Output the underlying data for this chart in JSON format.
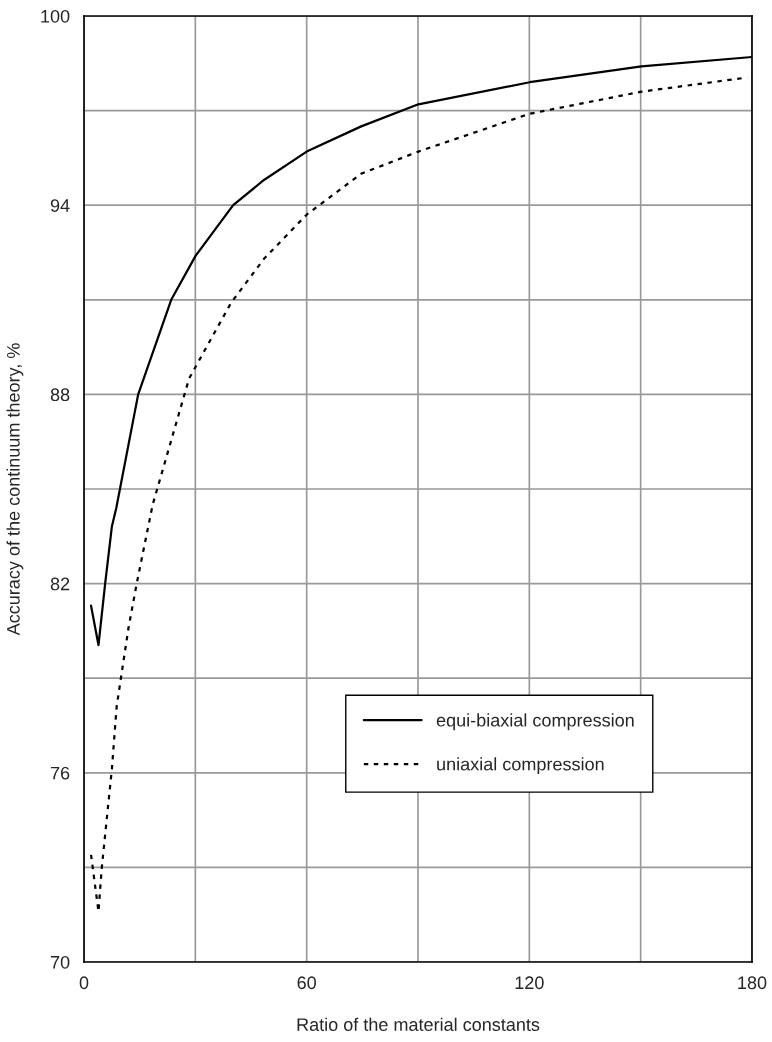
{
  "chart_data": {
    "type": "line",
    "xlabel": "Ratio of the material constants",
    "ylabel": "Accuracy of the continuum theory, %",
    "xlim": [
      0,
      180
    ],
    "ylim": [
      70,
      100
    ],
    "xticks": [
      0,
      {
        "value": 30,
        "label": null
      },
      60,
      {
        "value": 90,
        "label": null
      },
      120,
      {
        "value": 150,
        "label": null
      },
      180
    ],
    "yticks": [
      70,
      {
        "value": 73,
        "label": null
      },
      76,
      {
        "value": 79,
        "label": null
      },
      82,
      {
        "value": 85,
        "label": null
      },
      88,
      {
        "value": 91,
        "label": null
      },
      94,
      {
        "value": 97,
        "label": null
      },
      100
    ],
    "grid": true,
    "legend": "bottom right",
    "marker": "none",
    "series": [
      {
        "name": "equi-biaxial compression",
        "color": "#000000",
        "line_style": "solid",
        "x": [
          1.9,
          3.9,
          5.7,
          7.5,
          8.7,
          14.6,
          23.5,
          30.1,
          40.2,
          48.5,
          60,
          74.7,
          90.1,
          120.1,
          150.2,
          180
        ],
        "values": [
          81.3,
          80.05,
          82,
          83.8,
          84.4,
          88.0,
          91.0,
          92.4,
          94.0,
          94.8,
          95.7,
          96.5,
          97.2,
          97.9,
          98.4,
          98.7
        ]
      },
      {
        "name": "uniaxial compression",
        "color": "#000000",
        "line_style": "dotted",
        "x": [
          1.9,
          3.9,
          4.8,
          6.1,
          7.5,
          8.8,
          10.2,
          12.0,
          14.2,
          18.5,
          28.3,
          39.6,
          48.5,
          60,
          74.7,
          90.1,
          120.1,
          150.2,
          178.7
        ],
        "values": [
          73.4,
          71.6,
          73.0,
          74.5,
          76.1,
          78.1,
          79.2,
          80.6,
          82.0,
          84.5,
          88.5,
          90.9,
          92.3,
          93.7,
          95.0,
          95.7,
          96.9,
          97.6,
          98.05
        ]
      }
    ]
  }
}
